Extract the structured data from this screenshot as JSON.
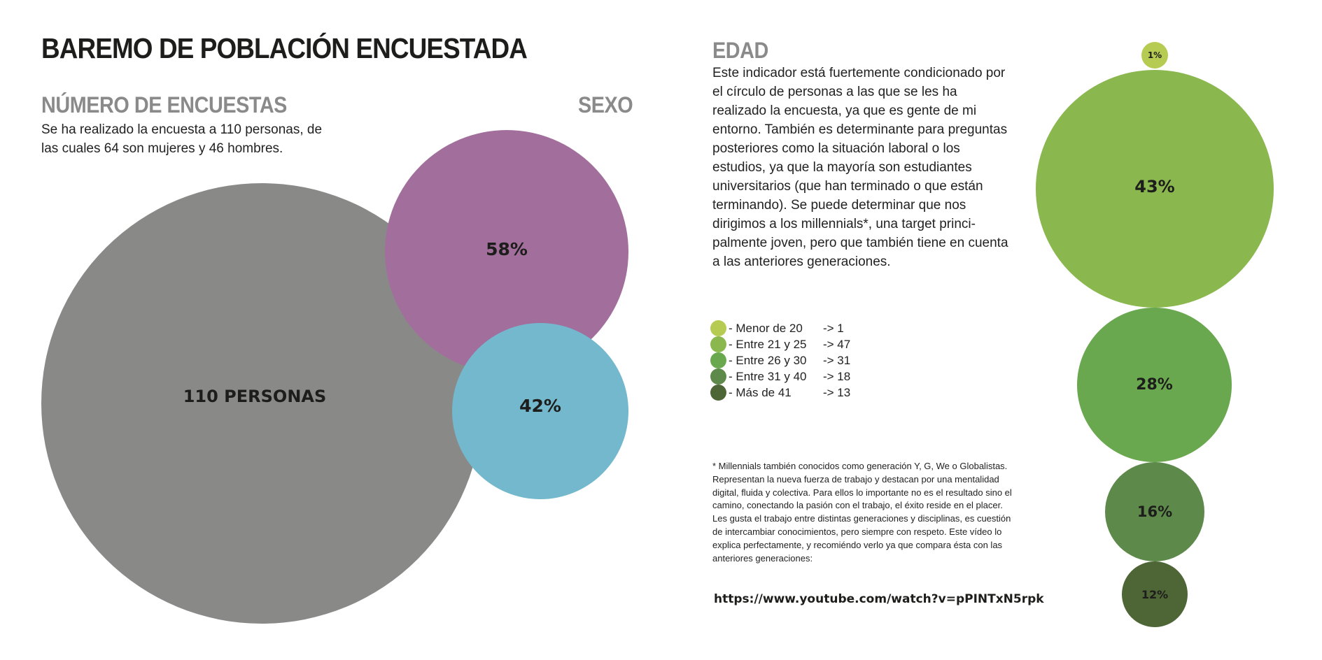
{
  "page": {
    "title": "BAREMO DE POBLACIÓN ENCUESTADA"
  },
  "encuestas": {
    "heading": "NÚMERO DE ENCUESTAS",
    "text": "Se ha realizado la encuesta a 110 personas, de las cuales 64 son mujeres y 46 hombres.",
    "total_label": "110 PERSONAS"
  },
  "sexo": {
    "heading": "SEXO"
  },
  "edad": {
    "heading": "EDAD",
    "text": "Este indicador está fuertemente condicionado por el círculo de personas a las que se les ha realizado la encuesta, ya que es gente de mi entorno. También es determinante para preguntas posteriores como la situación laboral o los estudios, ya que la mayoría son estudiantes universitarios (que han terminado o que están terminando). Se puede determinar que nos dirigimos a los millennials*, una target princi-palmente joven, pero que también tiene en cuenta a las anteriores generaciones.",
    "footnote": "* Millennials también conocidos como generación Y, G, We o Globalistas. Representan la nueva fuerza de trabajo y destacan por una mentalidad digital, fluida y colectiva. Para ellos lo importante no es el resultado sino el camino, conectando la pasión con el trabajo, el éxito reside en el placer. Les gusta el trabajo entre distintas generaciones y disciplinas, es cuestión de intercambiar conocimientos, pero siempre con respeto. Este vídeo lo explica perfectamente, y recomiéndo verlo ya que compara ésta con las anteriores generaciones:",
    "url": "https://www.youtube.com/watch?v=pPINTxN5rpk"
  },
  "chart_data": [
    {
      "type": "bubble",
      "chart": "sexo",
      "total": {
        "label": "110 PERSONAS",
        "value": 110,
        "color": "#898988"
      },
      "series": [
        {
          "value": 58,
          "label": "58%",
          "color": "#a26f9d"
        },
        {
          "value": 42,
          "label": "42%",
          "color": "#73b8cc"
        }
      ]
    },
    {
      "type": "bubble",
      "chart": "edad",
      "categories": [
        "- Menor de 20",
        "- Entre 21 y 25",
        "- Entre 26 y 30",
        "- Entre 31 y 40",
        "- Más de 41"
      ],
      "counts": [
        "-> 1",
        "-> 47",
        "-> 31",
        "-> 18",
        "-> 13"
      ],
      "values": [
        1,
        47,
        31,
        18,
        13
      ],
      "labels": [
        "1%",
        "43%",
        "28%",
        "16%",
        "12%"
      ],
      "colors": [
        "#b6cb51",
        "#8ab84f",
        "#6aa84f",
        "#5d8a4a",
        "#4e6536"
      ]
    }
  ]
}
